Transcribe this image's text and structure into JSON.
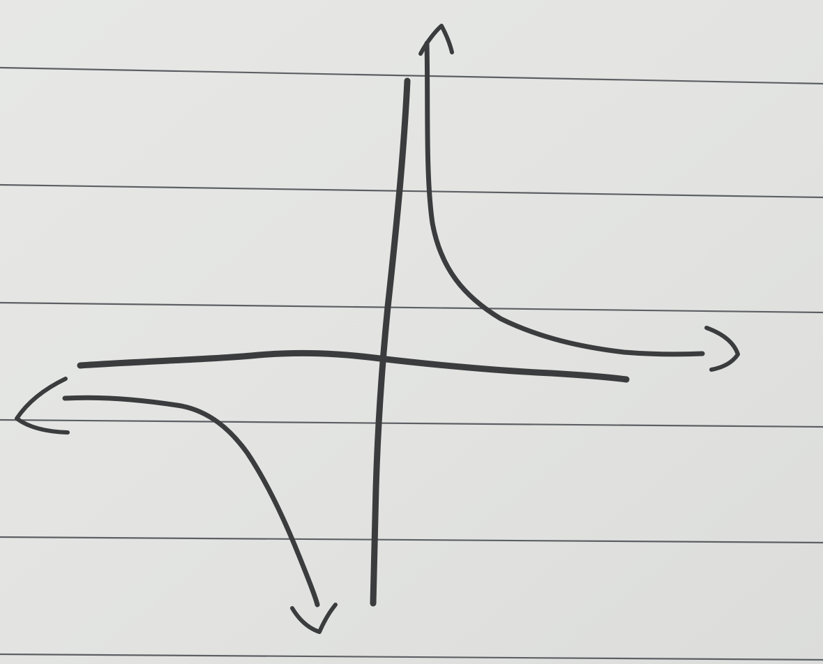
{
  "sheet": {
    "paper_color": "#e4e5e3",
    "rule_color": "#5c5f63",
    "ink_color": "#3b3c3e"
  },
  "sketch": {
    "type": "hand-drawn graph",
    "axes": [
      "x-axis",
      "y-axis"
    ],
    "curves": [
      {
        "name": "upper-right-branch",
        "quadrant": "I",
        "ends": [
          "arrow-up",
          "arrow-right"
        ]
      },
      {
        "name": "lower-left-branch",
        "quadrant": "III",
        "ends": [
          "arrow-left",
          "arrow-down"
        ]
      }
    ]
  }
}
